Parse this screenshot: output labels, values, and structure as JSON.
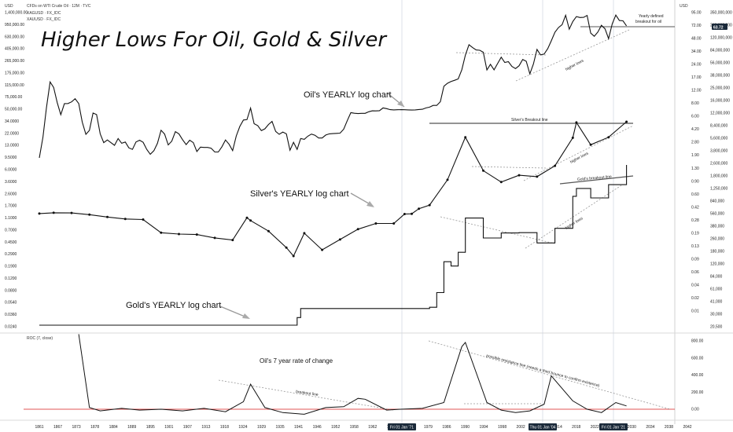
{
  "header": {
    "currency_left": "USD",
    "currency_right": "USD",
    "symbol_line": "CFDs on WTI Crude Oil · 12M · TVC",
    "overlay_1": "XAGUSD · FX_IDC",
    "overlay_2": "XAUUSD · FX_IDC",
    "indicator_label": "ROC (7, close)"
  },
  "annotations": {
    "title": "Higher Lows For Oil, Gold & Silver",
    "oil_label": "Oil's YEARLY log chart",
    "silver_label": "Silver's YEARLY log chart",
    "gold_label": "Gold's YEARLY log chart",
    "roc_label": "Oil's 7 year rate of change",
    "higher_lows_oil": "higher lows",
    "higher_lows_silver": "higher lows",
    "higher_lows_gold": "higher lows",
    "silver_breakout": "Silver's Breakout line",
    "gold_breakout": "Gold's breakout line",
    "yearly_defined_1": "Yearly defined",
    "yearly_defined_2": "breakout for oil",
    "breakout_line": "breakout line",
    "resistance": "possible resistance line (needs a third bounce to confirm existence)",
    "price_badge": "63.72"
  },
  "left_axis": [
    "1,400,000.00",
    "950,000.00",
    "630,000.00",
    "405,000.00",
    "265,000.00",
    "175,000.00",
    "115,000.00",
    "75,000.00",
    "50,000.00",
    "34.0000",
    "22.0000",
    "13.0000",
    "9.5000",
    "6.0000",
    "3.6000",
    "2.6000",
    "1.7000",
    "1.1000",
    "0.7000",
    "0.4500",
    "0.2900",
    "0.1900",
    "0.1200",
    "0.0800",
    "0.0540",
    "0.0360",
    "0.0240"
  ],
  "right_axis_oil": [
    "USD",
    "95.00",
    "72.00",
    "48.00",
    "34.00",
    "24.00",
    "17.00",
    "12.00",
    "8.00",
    "6.00",
    "4.20",
    "2.80",
    "1.90",
    "1.30",
    "0.90",
    "0.60",
    "0.42",
    "0.28",
    "0.19",
    "0.13",
    "0.09",
    "0.06",
    "0.04",
    "0.02",
    "0.01"
  ],
  "right_axis_wide": [
    "",
    "350,000,000",
    "240,000,000",
    "120,000,000",
    "84,000,000",
    "56,000,000",
    "38,000,000",
    "25,000,000",
    "16,000,000",
    "12,000,000",
    "8,400,000",
    "5,600,000",
    "3,800,000",
    "2,600,000",
    "1,800,000",
    "1,250,000",
    "840,000",
    "560,000",
    "380,000",
    "260,000",
    "180,000",
    "120,000",
    "84,000",
    "61,000",
    "41,000",
    "30,000",
    "20,500"
  ],
  "roc_axis": [
    "800.00",
    "600.00",
    "400.00",
    "200.00",
    "0.00"
  ],
  "x_axis": [
    "1861",
    "1867",
    "1873",
    "1878",
    "1884",
    "1889",
    "1895",
    "1901",
    "1907",
    "1913",
    "1918",
    "1924",
    "1929",
    "1935",
    "1941",
    "1946",
    "1952",
    "1958",
    "1962",
    "1968",
    "1974",
    "1979",
    "1986",
    "1990",
    "1994",
    "1998",
    "2002",
    "2010",
    "2014",
    "2018",
    "2022",
    "2026",
    "2030",
    "2034",
    "2038",
    "2042"
  ],
  "x_highlights": [
    "Fri 01 Jan '71",
    "Thu 01 Jan '04",
    "Fri 01 Jan '21"
  ],
  "colors": {
    "price_line": "#111111",
    "zero_line": "#e05555",
    "dotted": "#888888",
    "badge": "#1b2a3a",
    "grid": "#eeeeee"
  },
  "chart_data": [
    {
      "type": "line",
      "name": "oil",
      "scale": "log",
      "x": [
        1861,
        1862,
        1863,
        1864,
        1865,
        1866,
        1867,
        1868,
        1869,
        1870,
        1871,
        1872,
        1873,
        1874,
        1875,
        1876,
        1877,
        1878,
        1879,
        1880,
        1881,
        1882,
        1883,
        1884,
        1885,
        1886,
        1887,
        1888,
        1889,
        1890,
        1891,
        1892,
        1893,
        1894,
        1895,
        1896,
        1897,
        1898,
        1899,
        1900,
        1901,
        1902,
        1903,
        1904,
        1905,
        1906,
        1907,
        1908,
        1909,
        1910,
        1911,
        1912,
        1913,
        1914,
        1915,
        1916,
        1917,
        1918,
        1919,
        1920,
        1921,
        1922,
        1923,
        1924,
        1925,
        1926,
        1927,
        1928,
        1929,
        1930,
        1931,
        1932,
        1933,
        1934,
        1935,
        1936,
        1937,
        1938,
        1939,
        1940,
        1941,
        1942,
        1943,
        1944,
        1945,
        1946,
        1947,
        1948,
        1949,
        1950,
        1951,
        1952,
        1953,
        1954,
        1955,
        1956,
        1957,
        1958,
        1959,
        1960,
        1961,
        1962,
        1963,
        1964,
        1965,
        1966,
        1967,
        1968,
        1969,
        1970,
        1971,
        1972,
        1973,
        1974,
        1975,
        1976,
        1977,
        1978,
        1979,
        1980,
        1981,
        1982,
        1983,
        1984,
        1985,
        1986,
        1987,
        1988,
        1989,
        1990,
        1991,
        1992,
        1993,
        1994,
        1995,
        1996,
        1997,
        1998,
        1999,
        2000,
        2001,
        2002,
        2003,
        2004,
        2005,
        2006,
        2007,
        2008,
        2009,
        2010,
        2011,
        2012,
        2013,
        2014,
        2015,
        2016,
        2017,
        2018,
        2019,
        2020,
        2021,
        2022,
        2023,
        2024,
        2025
      ],
      "y": [
        0.49,
        1.05,
        3.15,
        8.06,
        6.59,
        3.74,
        2.41,
        3.63,
        3.64,
        3.86,
        4.34,
        3.64,
        1.83,
        1.17,
        1.35,
        2.56,
        2.42,
        1.19,
        0.86,
        0.95,
        0.86,
        0.78,
        1.0,
        0.84,
        0.88,
        0.71,
        0.67,
        0.88,
        0.94,
        0.87,
        0.67,
        0.56,
        0.64,
        0.84,
        1.36,
        1.18,
        0.79,
        0.91,
        1.29,
        1.19,
        0.96,
        0.8,
        0.94,
        0.86,
        0.62,
        0.73,
        0.72,
        0.72,
        0.7,
        0.61,
        0.61,
        0.74,
        0.95,
        0.81,
        0.64,
        1.1,
        1.56,
        1.98,
        2.01,
        3.07,
        1.73,
        1.61,
        1.34,
        1.43,
        1.68,
        1.88,
        1.3,
        1.17,
        1.27,
        1.19,
        0.65,
        0.87,
        0.67,
        1.0,
        0.97,
        1.09,
        1.18,
        1.13,
        1.02,
        1.02,
        1.14,
        1.19,
        1.2,
        1.21,
        1.22,
        1.41,
        1.93,
        2.6,
        2.54,
        2.51,
        2.53,
        2.53,
        2.68,
        2.78,
        2.77,
        2.79,
        3.09,
        3.01,
        2.9,
        2.88,
        2.89,
        2.9,
        2.89,
        2.88,
        2.86,
        2.88,
        2.92,
        2.94,
        3.09,
        3.18,
        3.39,
        3.39,
        3.89,
        6.87,
        7.67,
        8.19,
        8.57,
        9.0,
        12.64,
        21.59,
        31.77,
        28.52,
        26.19,
        25.88,
        24.09,
        12.51,
        15.4,
        12.58,
        15.86,
        20.03,
        16.54,
        17.0,
        14.25,
        13.19,
        14.62,
        18.46,
        17.23,
        10.87,
        15.56,
        26.72,
        21.84,
        22.51,
        27.56,
        36.77,
        50.28,
        59.69,
        66.52,
        94.04,
        56.35,
        74.71,
        89.57,
        86.46,
        86.99,
        93.17,
        48.66,
        43.29,
        50.8,
        64.9,
        56.99,
        39.68,
        68.17,
        94.53,
        77.58,
        76.63,
        63.72
      ]
    },
    {
      "type": "line",
      "name": "silver",
      "scale": "log",
      "x": [
        1861,
        1865,
        1870,
        1875,
        1880,
        1885,
        1890,
        1895,
        1900,
        1905,
        1910,
        1915,
        1919,
        1920,
        1925,
        1930,
        1932,
        1935,
        1940,
        1945,
        1950,
        1955,
        1960,
        1963,
        1965,
        1967,
        1970,
        1975,
        1980,
        1985,
        1990,
        1995,
        2000,
        2005,
        2010,
        2011,
        2015,
        2020,
        2025
      ],
      "y": [
        1.3,
        1.34,
        1.33,
        1.25,
        1.15,
        1.07,
        1.05,
        0.65,
        0.62,
        0.61,
        0.54,
        0.5,
        1.12,
        1.01,
        0.69,
        0.38,
        0.28,
        0.64,
        0.35,
        0.51,
        0.74,
        0.91,
        0.91,
        1.28,
        1.29,
        1.55,
        1.77,
        4.42,
        20.6,
        6.14,
        4.06,
        5.2,
        4.95,
        7.31,
        20.19,
        35.12,
        15.68,
        20.55,
        36.0
      ]
    },
    {
      "type": "line",
      "name": "gold",
      "scale": "log",
      "x": [
        1861,
        1900,
        1933,
        1934,
        1970,
        1972,
        1974,
        1976,
        1978,
        1980,
        1985,
        1990,
        1995,
        2000,
        2005,
        2010,
        2011,
        2015,
        2020,
        2025
      ],
      "y": [
        20.67,
        20.67,
        26.33,
        35.0,
        36.4,
        58.0,
        154.0,
        134.5,
        208.0,
        615.0,
        327.0,
        383.5,
        387.0,
        279.0,
        444.0,
        1225.0,
        1570.0,
        1160.0,
        1770.0,
        3300.0
      ]
    },
    {
      "type": "line",
      "name": "ROC (7, close)",
      "x": [
        1872,
        1875,
        1878,
        1884,
        1889,
        1895,
        1901,
        1907,
        1913,
        1918,
        1920,
        1924,
        1929,
        1935,
        1941,
        1946,
        1950,
        1952,
        1958,
        1962,
        1968,
        1974,
        1979,
        1980,
        1986,
        1990,
        1994,
        1998,
        2002,
        2004,
        2008,
        2010,
        2014,
        2018,
        2022,
        2025
      ],
      "y": [
        900,
        20,
        -20,
        10,
        -10,
        0,
        -20,
        10,
        -30,
        90,
        300,
        20,
        -40,
        -60,
        20,
        30,
        130,
        120,
        -10,
        0,
        10,
        80,
        750,
        800,
        80,
        -10,
        -40,
        -20,
        60,
        400,
        200,
        100,
        0,
        -40,
        80,
        40
      ]
    }
  ]
}
